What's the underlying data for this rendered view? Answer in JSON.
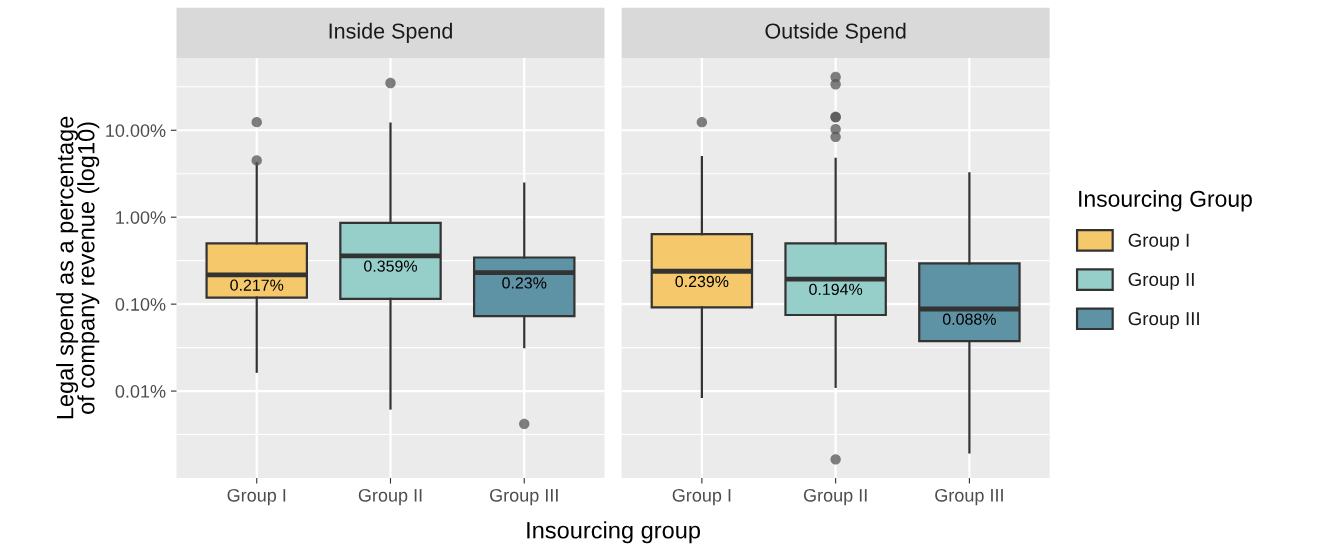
{
  "chart_data": [
    {
      "type": "box",
      "title": "Inside Spend",
      "ylabel": "Legal spend as a percentage\nof company revenue (log10)",
      "xlabel": "Insourcing group",
      "categories": [
        "Group I",
        "Group II",
        "Group III"
      ],
      "series": [
        {
          "name": "Group I",
          "color": "#f5c96b",
          "boxes": [
            {
              "low": 0.0167,
              "q1": 0.119,
              "median": 0.217,
              "q3": 0.5,
              "high": 4.2,
              "outliers": [
                4.5,
                12.4
              ]
            },
            null,
            null
          ]
        },
        {
          "name": "Group II",
          "color": "#96cfca",
          "boxes": [
            null,
            {
              "low": 0.0063,
              "q1": 0.115,
              "median": 0.359,
              "q3": 0.86,
              "high": 11.9,
              "outliers": [
                35
              ]
            },
            null
          ]
        },
        {
          "name": "Group III",
          "color": "#5e93a6",
          "boxes": [
            null,
            null,
            {
              "low": 0.032,
              "q1": 0.073,
              "median": 0.23,
              "q3": 0.344,
              "high": 2.44,
              "outliers": [
                0.0042
              ]
            }
          ]
        }
      ],
      "value_labels": [
        "0.217%",
        "0.359%",
        "0.23%"
      ],
      "log": "y",
      "ylim": [
        0.001,
        68
      ],
      "yticks": [
        {
          "value": 0.01,
          "label": "0.01%"
        },
        {
          "value": 0.1,
          "label": "0.10%"
        },
        {
          "value": 1,
          "label": "1.00%"
        },
        {
          "value": 10,
          "label": "10.00%"
        }
      ],
      "grid": true,
      "legend": "right",
      "legend_title": "Insourcing Group"
    },
    {
      "type": "box",
      "title": "Outside Spend",
      "categories": [
        "Group I",
        "Group II",
        "Group III"
      ],
      "series": [
        {
          "color": "#f5c96b",
          "boxes": [
            {
              "low": 0.0086,
              "q1": 0.092,
              "median": 0.239,
              "q3": 0.64,
              "high": 4.9,
              "outliers": [
                12.4
              ]
            },
            null,
            null
          ]
        },
        {
          "color": "#96cfca",
          "boxes": [
            null,
            {
              "low": 0.0112,
              "q1": 0.075,
              "median": 0.194,
              "q3": 0.5,
              "high": 4.7,
              "outliers": [
                0.00164,
                8.4,
                10.3,
                14.2,
                14.2,
                33.8,
                41
              ]
            },
            null
          ]
        },
        {
          "color": "#5e93a6",
          "boxes": [
            null,
            null,
            {
              "low": 0.00197,
              "q1": 0.0376,
              "median": 0.088,
              "q3": 0.294,
              "high": 3.2
            }
          ]
        }
      ],
      "value_labels": [
        "0.239%",
        "0.194%",
        "0.088%"
      ],
      "log": "y",
      "ylim": [
        0.001,
        68
      ],
      "yticks": [
        0.01,
        0.1,
        1,
        10
      ],
      "tick_labels": "x",
      "grid": true
    }
  ]
}
